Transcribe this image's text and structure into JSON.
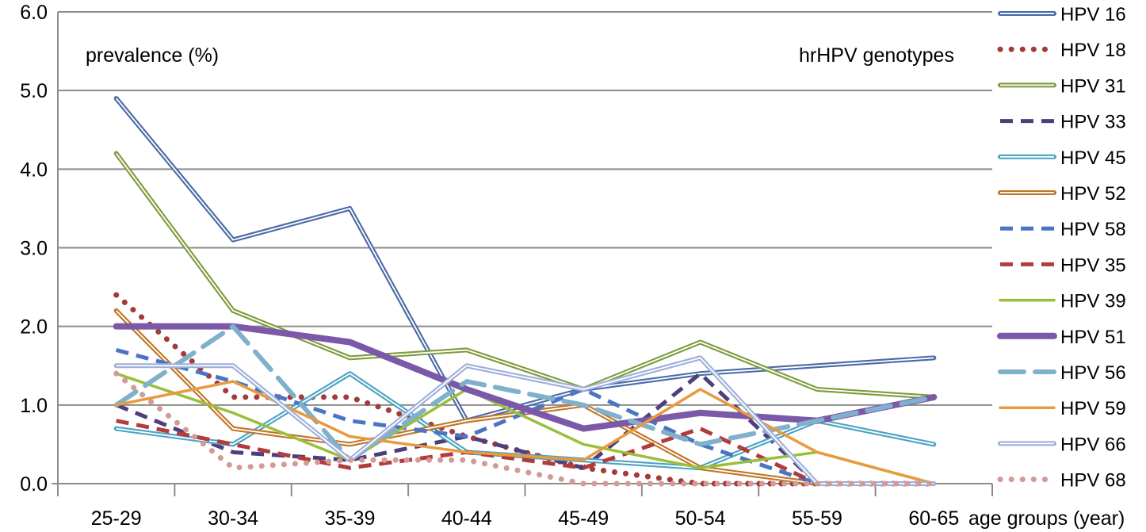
{
  "chart_data": {
    "type": "line",
    "ylabel": "prevalence (%)",
    "xlabel": "age groups (year)",
    "legend_title": "hrHPV genotypes",
    "legend_position": "right",
    "grid": true,
    "ylim": [
      0,
      6
    ],
    "y_ticks": [
      "0.0",
      "1.0",
      "2.0",
      "3.0",
      "4.0",
      "5.0",
      "6.0"
    ],
    "categories": [
      "25-29",
      "30-34",
      "35-39",
      "40-44",
      "45-49",
      "50-54",
      "55-59",
      "60-65"
    ],
    "series": [
      {
        "name": "HPV 16",
        "color": "#4a6aa5",
        "style": "double",
        "values": [
          4.9,
          3.1,
          3.5,
          0.8,
          1.2,
          1.4,
          1.5,
          1.6
        ]
      },
      {
        "name": "HPV 18",
        "color": "#a23c3a",
        "style": "dots",
        "values": [
          2.4,
          1.1,
          1.1,
          0.6,
          0.2,
          0.0,
          0.0,
          0.0
        ]
      },
      {
        "name": "HPV 31",
        "color": "#7f9b3d",
        "style": "double",
        "values": [
          4.2,
          2.2,
          1.6,
          1.7,
          1.2,
          1.8,
          1.2,
          1.1
        ]
      },
      {
        "name": "HPV 33",
        "color": "#4d3f7c",
        "style": "dash",
        "values": [
          1.0,
          0.4,
          0.3,
          0.6,
          0.2,
          1.4,
          0.0,
          0.0
        ]
      },
      {
        "name": "HPV 45",
        "color": "#4ba3c3",
        "style": "double",
        "values": [
          0.7,
          0.5,
          1.4,
          0.4,
          0.3,
          0.2,
          0.8,
          0.5
        ]
      },
      {
        "name": "HPV 52",
        "color": "#c07526",
        "style": "double",
        "values": [
          2.2,
          0.7,
          0.5,
          0.8,
          1.0,
          0.2,
          0.0,
          0.0
        ]
      },
      {
        "name": "HPV 58",
        "color": "#4a74c4",
        "style": "dash",
        "values": [
          1.7,
          1.3,
          0.8,
          0.6,
          1.2,
          0.5,
          0.0,
          0.0
        ]
      },
      {
        "name": "HPV 35",
        "color": "#b23b3b",
        "style": "dash",
        "values": [
          0.8,
          0.5,
          0.2,
          0.4,
          0.2,
          0.7,
          0.0,
          0.0
        ]
      },
      {
        "name": "HPV 39",
        "color": "#9bbf3a",
        "style": "solid",
        "values": [
          1.4,
          0.9,
          0.3,
          1.2,
          0.5,
          0.2,
          0.4,
          0.0
        ]
      },
      {
        "name": "HPV 51",
        "color": "#7b59a8",
        "style": "thick",
        "values": [
          2.0,
          2.0,
          1.8,
          1.2,
          0.7,
          0.9,
          0.8,
          1.1
        ]
      },
      {
        "name": "HPV 56",
        "color": "#7fb0cc",
        "style": "longdash",
        "values": [
          1.0,
          2.0,
          0.3,
          1.3,
          1.0,
          0.5,
          0.8,
          1.1
        ]
      },
      {
        "name": "HPV 59",
        "color": "#e99a3c",
        "style": "solid",
        "values": [
          1.0,
          1.3,
          0.6,
          0.4,
          0.3,
          1.2,
          0.4,
          0.0
        ]
      },
      {
        "name": "HPV 66",
        "color": "#9eafda",
        "style": "double",
        "values": [
          1.5,
          1.5,
          0.3,
          1.5,
          1.2,
          1.6,
          0.0,
          0.0
        ]
      },
      {
        "name": "HPV 68",
        "color": "#d39a97",
        "style": "dots",
        "values": [
          1.4,
          0.2,
          0.3,
          0.3,
          0.0,
          0.0,
          0.0,
          0.0
        ]
      }
    ]
  }
}
